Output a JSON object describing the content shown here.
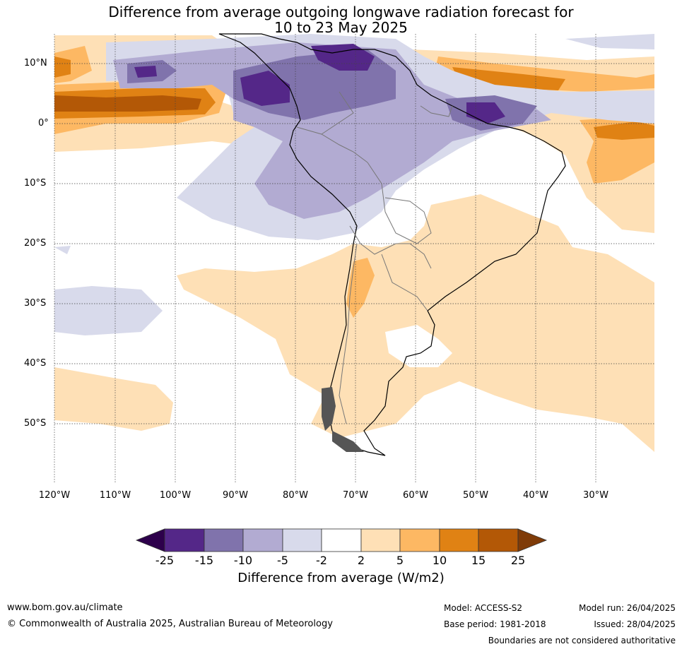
{
  "title": {
    "line1": "Difference from average outgoing longwave radiation forecast for",
    "line2": "10 to 23 May 2025"
  },
  "map": {
    "lat_labels": [
      "10°N",
      "0°",
      "10°S",
      "20°S",
      "30°S",
      "40°S",
      "50°S"
    ],
    "lon_labels": [
      "120°W",
      "110°W",
      "100°W",
      "90°W",
      "80°W",
      "70°W",
      "60°W",
      "50°W",
      "40°W",
      "30°W"
    ],
    "colors": {
      "lt_-25": "#2d004b",
      "-25_-15": "#542788",
      "-15_-10": "#8073ac",
      "-10_-5": "#b2abd2",
      "-5_-2": "#d8daeb",
      "-2_2": "#ffffff",
      "2_5": "#fee0b6",
      "5_10": "#fdb863",
      "10_15": "#e08214",
      "15_25": "#b35806",
      "gt_25": "#7f3b08"
    }
  },
  "colorbar": {
    "ticks": [
      "-25",
      "-15",
      "-10",
      "-5",
      "-2",
      "2",
      "5",
      "10",
      "15",
      "25"
    ],
    "title": "Difference from average (W/m2)"
  },
  "footer": {
    "website": "www.bom.gov.au/climate",
    "copyright": "© Commonwealth of Australia 2025, Australian Bureau of Meteorology",
    "model": "Model: ACCESS-S2",
    "base_period": "Base period: 1981-2018",
    "model_run": "Model run: 26/04/2025",
    "issued": "Issued: 28/04/2025",
    "boundaries": "Boundaries are not considered authoritative"
  }
}
